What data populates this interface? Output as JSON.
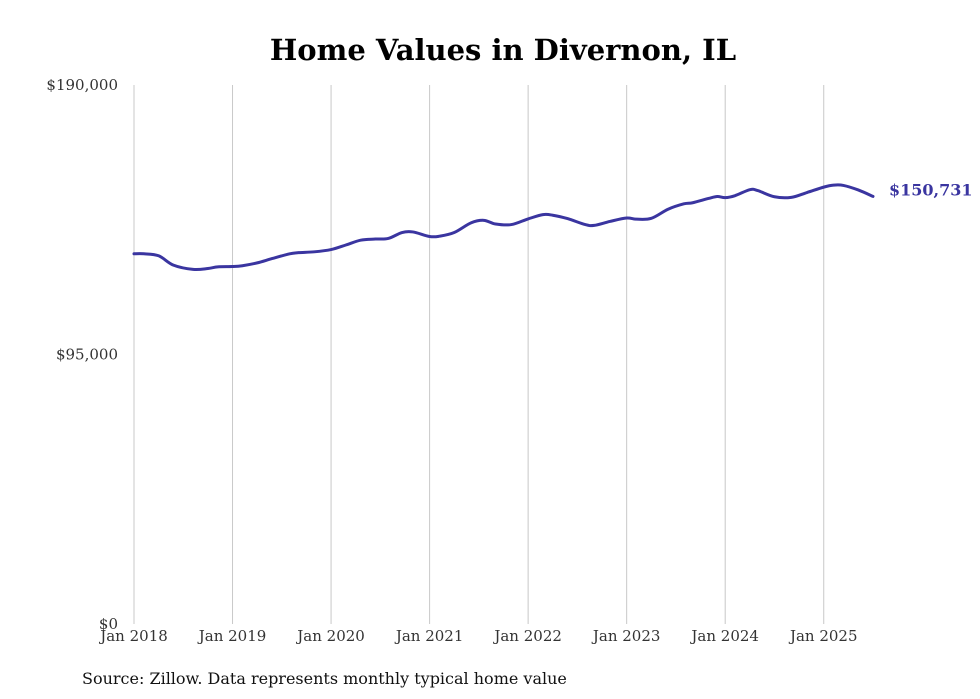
{
  "chart_data": {
    "type": "line",
    "title": "Home Values in Divernon, IL",
    "xlabel": "",
    "ylabel": "",
    "ylim": [
      0,
      190000
    ],
    "ytick_values": [
      0,
      95000,
      190000
    ],
    "ytick_labels": [
      "$0",
      "$95,000",
      "$190,000"
    ],
    "xlim": [
      2018.0,
      2025.5
    ],
    "xtick_values": [
      2018,
      2019,
      2020,
      2021,
      2022,
      2023,
      2024,
      2025
    ],
    "xtick_labels": [
      "Jan 2018",
      "Jan 2019",
      "Jan 2020",
      "Jan 2021",
      "Jan 2022",
      "Jan 2023",
      "Jan 2024",
      "Jan 2025"
    ],
    "grid": "vertical",
    "series": [
      {
        "name": "Typical home value",
        "color": "#3a35a0",
        "points": [
          [
            2018.0,
            130500
          ],
          [
            2018.1,
            130500
          ],
          [
            2018.25,
            129800
          ],
          [
            2018.4,
            126500
          ],
          [
            2018.6,
            125000
          ],
          [
            2018.75,
            125300
          ],
          [
            2018.85,
            125900
          ],
          [
            2019.0,
            126000
          ],
          [
            2019.1,
            126300
          ],
          [
            2019.25,
            127300
          ],
          [
            2019.4,
            128800
          ],
          [
            2019.58,
            130500
          ],
          [
            2019.67,
            130900
          ],
          [
            2019.83,
            131200
          ],
          [
            2020.0,
            132000
          ],
          [
            2020.15,
            133600
          ],
          [
            2020.3,
            135300
          ],
          [
            2020.45,
            135700
          ],
          [
            2020.58,
            135900
          ],
          [
            2020.72,
            138000
          ],
          [
            2020.83,
            138200
          ],
          [
            2021.0,
            136600
          ],
          [
            2021.1,
            136700
          ],
          [
            2021.25,
            138000
          ],
          [
            2021.42,
            141400
          ],
          [
            2021.55,
            142300
          ],
          [
            2021.67,
            141000
          ],
          [
            2021.83,
            140800
          ],
          [
            2022.0,
            142800
          ],
          [
            2022.15,
            144300
          ],
          [
            2022.25,
            144100
          ],
          [
            2022.4,
            142900
          ],
          [
            2022.58,
            140800
          ],
          [
            2022.67,
            140500
          ],
          [
            2022.83,
            141900
          ],
          [
            2023.0,
            143100
          ],
          [
            2023.1,
            142700
          ],
          [
            2023.25,
            143000
          ],
          [
            2023.42,
            146200
          ],
          [
            2023.58,
            148100
          ],
          [
            2023.67,
            148500
          ],
          [
            2023.83,
            150000
          ],
          [
            2023.92,
            150700
          ],
          [
            2024.0,
            150300
          ],
          [
            2024.1,
            151000
          ],
          [
            2024.25,
            153100
          ],
          [
            2024.33,
            152800
          ],
          [
            2024.5,
            150600
          ],
          [
            2024.67,
            150400
          ],
          [
            2024.83,
            152100
          ],
          [
            2025.0,
            154000
          ],
          [
            2025.1,
            154700
          ],
          [
            2025.2,
            154600
          ],
          [
            2025.35,
            153000
          ],
          [
            2025.5,
            150731
          ]
        ],
        "end_label": "$150,731"
      }
    ],
    "source_note": "Source: Zillow. Data represents monthly typical home value"
  }
}
